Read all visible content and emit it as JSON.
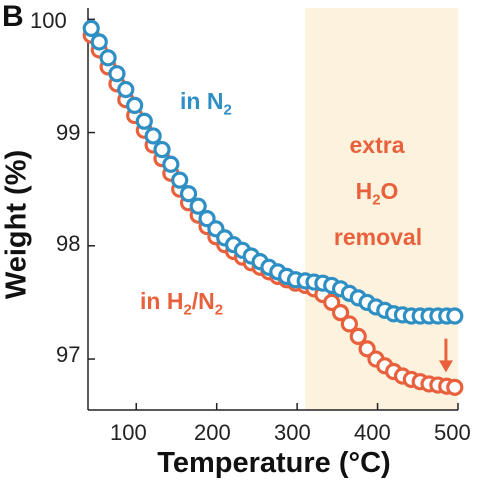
{
  "panel_label": "B",
  "chart_data": {
    "type": "scatter",
    "xlabel": "Temperature (°C)",
    "ylabel": "Weight (%)",
    "xlim": [
      40,
      500
    ],
    "ylim": [
      96.55,
      100.1
    ],
    "xticks": [
      100,
      200,
      300,
      400,
      500
    ],
    "yticks": [
      97,
      98,
      99,
      100
    ],
    "series": [
      {
        "name": "in N2",
        "color": "#2e8fc4",
        "points": [
          [
            44,
            99.92
          ],
          [
            54,
            99.8
          ],
          [
            65,
            99.66
          ],
          [
            76,
            99.52
          ],
          [
            87,
            99.38
          ],
          [
            98,
            99.24
          ],
          [
            110,
            99.1
          ],
          [
            121,
            98.97
          ],
          [
            132,
            98.85
          ],
          [
            143,
            98.72
          ],
          [
            154,
            98.58
          ],
          [
            165,
            98.46
          ],
          [
            177,
            98.35
          ],
          [
            188,
            98.24
          ],
          [
            199,
            98.15
          ],
          [
            210,
            98.07
          ],
          [
            221,
            98.01
          ],
          [
            232,
            97.96
          ],
          [
            243,
            97.91
          ],
          [
            254,
            97.86
          ],
          [
            265,
            97.81
          ],
          [
            276,
            97.77
          ],
          [
            287,
            97.73
          ],
          [
            298,
            97.7
          ],
          [
            310,
            97.69
          ],
          [
            321,
            97.68
          ],
          [
            332,
            97.67
          ],
          [
            343,
            97.65
          ],
          [
            354,
            97.62
          ],
          [
            365,
            97.58
          ],
          [
            376,
            97.54
          ],
          [
            387,
            97.5
          ],
          [
            398,
            97.46
          ],
          [
            409,
            97.43
          ],
          [
            420,
            97.4
          ],
          [
            431,
            97.39
          ],
          [
            442,
            97.38
          ],
          [
            453,
            97.38
          ],
          [
            464,
            97.38
          ],
          [
            475,
            97.38
          ],
          [
            486,
            97.38
          ],
          [
            496,
            97.38
          ]
        ]
      },
      {
        "name": "in H2/N2",
        "color": "#e8613c",
        "points": [
          [
            44,
            99.86
          ],
          [
            54,
            99.73
          ],
          [
            65,
            99.58
          ],
          [
            76,
            99.43
          ],
          [
            87,
            99.29
          ],
          [
            98,
            99.15
          ],
          [
            110,
            99.02
          ],
          [
            121,
            98.89
          ],
          [
            132,
            98.77
          ],
          [
            143,
            98.64
          ],
          [
            154,
            98.5
          ],
          [
            165,
            98.38
          ],
          [
            177,
            98.27
          ],
          [
            188,
            98.17
          ],
          [
            199,
            98.08
          ],
          [
            210,
            98.01
          ],
          [
            221,
            97.95
          ],
          [
            232,
            97.9
          ],
          [
            243,
            97.85
          ],
          [
            254,
            97.81
          ],
          [
            265,
            97.77
          ],
          [
            276,
            97.73
          ],
          [
            287,
            97.7
          ],
          [
            298,
            97.67
          ],
          [
            310,
            97.65
          ],
          [
            321,
            97.62
          ],
          [
            332,
            97.57
          ],
          [
            343,
            97.5
          ],
          [
            354,
            97.41
          ],
          [
            365,
            97.31
          ],
          [
            376,
            97.2
          ],
          [
            387,
            97.09
          ],
          [
            398,
            97.0
          ],
          [
            409,
            96.94
          ],
          [
            420,
            96.89
          ],
          [
            431,
            96.85
          ],
          [
            442,
            96.82
          ],
          [
            453,
            96.8
          ],
          [
            464,
            96.78
          ],
          [
            475,
            96.77
          ],
          [
            486,
            96.76
          ],
          [
            496,
            96.75
          ]
        ]
      }
    ],
    "shaded_region": {
      "x": [
        310,
        500
      ],
      "color": "#fdf2de"
    },
    "annotations": {
      "n2_label": "in N",
      "n2_sub": "2",
      "h2n2_label_a": "in H",
      "h2n2_sub_a": "2",
      "h2n2_label_b": "/N",
      "h2n2_sub_b": "2",
      "extra_line1": "extra",
      "extra_line2_a": "H",
      "extra_line2_sub": "2",
      "extra_line2_b": "O",
      "extra_line3": "removal"
    },
    "arrow": {
      "color": "#e8613c",
      "x": 485,
      "y_from": 97.18,
      "y_to": 96.9
    }
  }
}
